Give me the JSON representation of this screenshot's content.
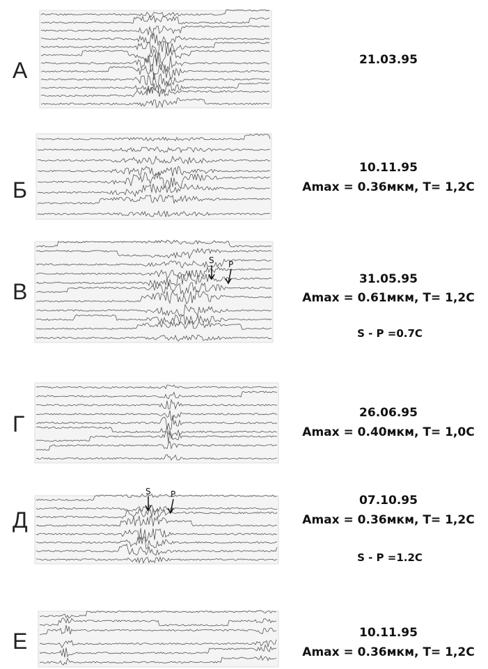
{
  "panels": [
    {
      "letter": "А",
      "date": "21.03.95"
    },
    {
      "letter": "Б",
      "date": "10.11.95",
      "amax": "Amax = 0.36мкм, T= 1,2C"
    },
    {
      "letter": "В",
      "date": "31.05.95",
      "amax": "Amax = 0.61мкм, T= 1,2C",
      "sp": "S - P =0.7C",
      "markers": [
        "S",
        "P"
      ]
    },
    {
      "letter": "Г",
      "date": "26.06.95",
      "amax": "Amax = 0.40мкм, T= 1,0C"
    },
    {
      "letter": "Д",
      "date": "07.10.95",
      "amax": "Amax = 0.36мкм, T= 1,2C",
      "sp": "S - P =1.2C",
      "markers": [
        "S",
        "P"
      ]
    },
    {
      "letter": "Е",
      "date": "10.11.95",
      "amax": "Amax = 0.36мкм, T= 1,2C"
    }
  ]
}
